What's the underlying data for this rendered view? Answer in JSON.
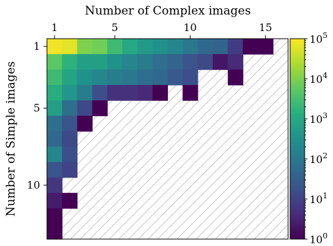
{
  "chart_data": {
    "type": "heatmap",
    "xlabel": "Number of Complex images",
    "ylabel": "Number of Simple images",
    "x_ticks": [
      "1",
      "5",
      "10",
      "15"
    ],
    "y_ticks": [
      "1",
      "5",
      "10"
    ],
    "x_range": [
      1,
      15
    ],
    "y_range": [
      1,
      12
    ],
    "color_scale": "log",
    "colormap": "viridis",
    "colorbar_ticks": [
      {
        "base": "10",
        "exp": "0"
      },
      {
        "base": "10",
        "exp": "1"
      },
      {
        "base": "10",
        "exp": "2"
      },
      {
        "base": "10",
        "exp": "3"
      },
      {
        "base": "10",
        "exp": "4"
      },
      {
        "base": "10",
        "exp": "5"
      }
    ],
    "empty_cells": "hatched",
    "grid": false,
    "note": "values are log10(count); null = no data",
    "log10_counts": [
      [
        4.9,
        4.8,
        4.0,
        3.9,
        3.4,
        3.0,
        2.7,
        2.5,
        2.3,
        2.0,
        1.7,
        1.6,
        0.9,
        0.0,
        0.0,
        null
      ],
      [
        3.7,
        3.2,
        2.8,
        2.8,
        2.5,
        2.3,
        2.1,
        1.8,
        1.6,
        1.3,
        1.1,
        0.3,
        0.6,
        null,
        null,
        null
      ],
      [
        3.4,
        2.9,
        2.5,
        2.3,
        2.1,
        2.0,
        1.8,
        1.7,
        1.4,
        1.2,
        null,
        null,
        0.0,
        null,
        null,
        null
      ],
      [
        3.1,
        2.6,
        2.1,
        1.2,
        0.7,
        0.7,
        0.6,
        0.0,
        null,
        0.0,
        null,
        null,
        null,
        null,
        null,
        null
      ],
      [
        2.8,
        1.8,
        1.1,
        0.0,
        null,
        null,
        null,
        null,
        null,
        null,
        null,
        null,
        null,
        null,
        null,
        null
      ],
      [
        1.8,
        1.3,
        0.0,
        null,
        null,
        null,
        null,
        null,
        null,
        null,
        null,
        null,
        null,
        null,
        null,
        null
      ],
      [
        1.7,
        1.1,
        null,
        null,
        null,
        null,
        null,
        null,
        null,
        null,
        null,
        null,
        null,
        null,
        null,
        null
      ],
      [
        2.3,
        1.2,
        null,
        null,
        null,
        null,
        null,
        null,
        null,
        null,
        null,
        null,
        null,
        null,
        null,
        null
      ],
      [
        1.3,
        1.0,
        null,
        null,
        null,
        null,
        null,
        null,
        null,
        null,
        null,
        null,
        null,
        null,
        null,
        null
      ],
      [
        0.8,
        null,
        null,
        null,
        null,
        null,
        null,
        null,
        null,
        null,
        null,
        null,
        null,
        null,
        null,
        null
      ],
      [
        0.4,
        0.0,
        null,
        null,
        null,
        null,
        null,
        null,
        null,
        null,
        null,
        null,
        null,
        null,
        null,
        null
      ],
      [
        0.0,
        null,
        null,
        null,
        null,
        null,
        null,
        null,
        null,
        null,
        null,
        null,
        null,
        null,
        null,
        null
      ],
      [
        0.0,
        null,
        null,
        null,
        null,
        null,
        null,
        null,
        null,
        null,
        null,
        null,
        null,
        null,
        null,
        null
      ]
    ],
    "zlim": [
      0,
      5
    ]
  }
}
